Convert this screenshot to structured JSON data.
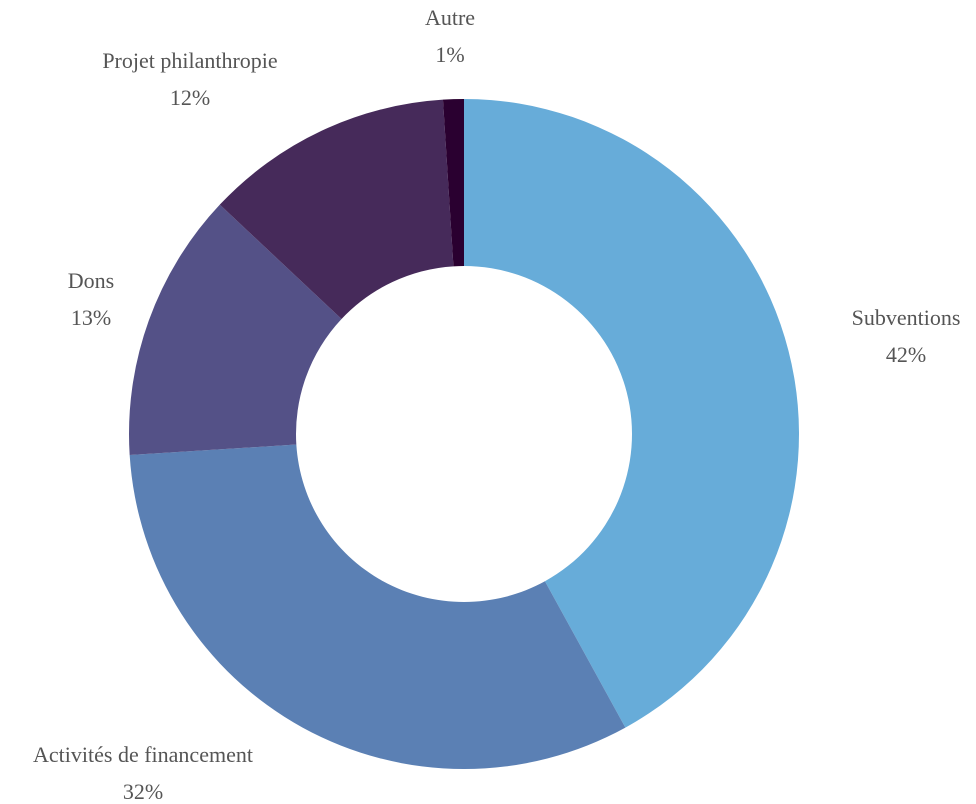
{
  "chart_data": {
    "type": "donut",
    "categories": [
      "Subventions",
      "Activités de financement",
      "Dons",
      "Projet philanthropie",
      "Autre"
    ],
    "values": [
      42,
      32,
      13,
      12,
      1
    ],
    "value_labels": [
      "42%",
      "32%",
      "13%",
      "12%",
      "1%"
    ],
    "colors": [
      "#67acd9",
      "#5b80b4",
      "#545187",
      "#462a5a",
      "#2a0030"
    ]
  }
}
